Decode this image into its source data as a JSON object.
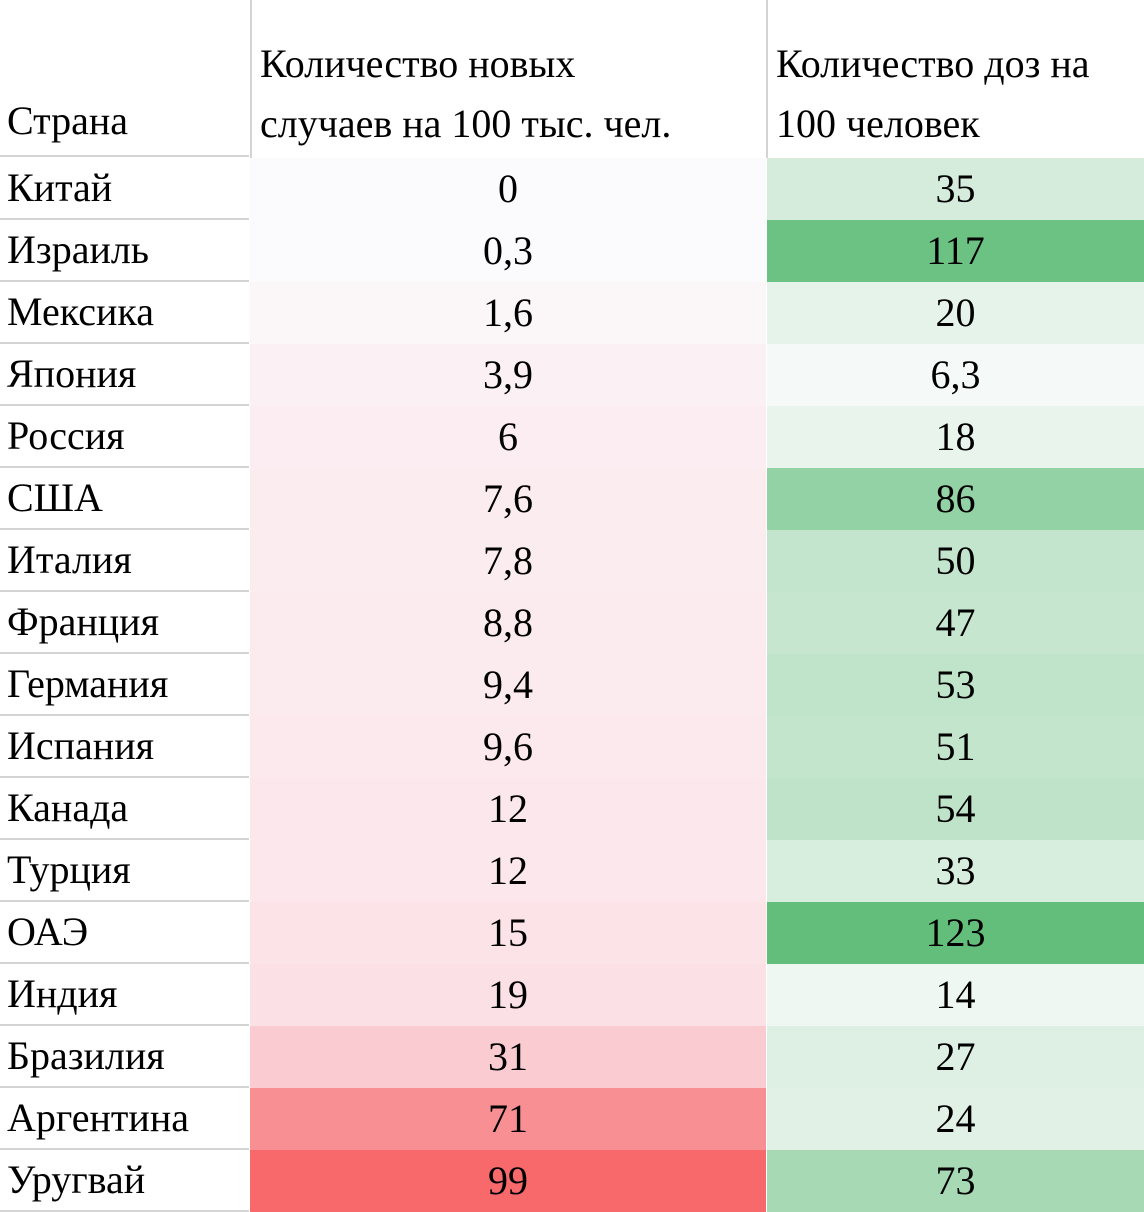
{
  "table": {
    "headers": {
      "country": "Страна",
      "cases": "Количество новых\nслучаев на 100 тыс. чел.",
      "doses": "Количество доз на\n100 человек"
    },
    "rows": [
      {
        "country": "Китай",
        "cases": "0",
        "doses": "35",
        "cases_color": "#fbfafd",
        "doses_color": "#d5ecdd"
      },
      {
        "country": "Израиль",
        "cases": "0,3",
        "doses": "117",
        "cases_color": "#fbfafd",
        "doses_color": "#6bc283"
      },
      {
        "country": "Мексика",
        "cases": "1,6",
        "doses": "20",
        "cases_color": "#fbf7f9",
        "doses_color": "#e6f3ea"
      },
      {
        "country": "Япония",
        "cases": "3,9",
        "doses": "6,3",
        "cases_color": "#fbf1f4",
        "doses_color": "#f5f9f7"
      },
      {
        "country": "Россия",
        "cases": "6",
        "doses": "18",
        "cases_color": "#fbedf1",
        "doses_color": "#e8f4ec"
      },
      {
        "country": "США",
        "cases": "7,6",
        "doses": "86",
        "cases_color": "#fbecf0",
        "doses_color": "#93d2a5"
      },
      {
        "country": "Италия",
        "cases": "7,8",
        "doses": "50",
        "cases_color": "#fbecf0",
        "doses_color": "#c3e5cd"
      },
      {
        "country": "Франция",
        "cases": "8,8",
        "doses": "47",
        "cases_color": "#fbebef",
        "doses_color": "#c6e6cf"
      },
      {
        "country": "Германия",
        "cases": "9,4",
        "doses": "53",
        "cases_color": "#fbeaee",
        "doses_color": "#c0e4ca"
      },
      {
        "country": "Испания",
        "cases": "9,6",
        "doses": "51",
        "cases_color": "#fbe9ee",
        "doses_color": "#c2e5cc"
      },
      {
        "country": "Канада",
        "cases": "12",
        "doses": "54",
        "cases_color": "#fbe7ec",
        "doses_color": "#bfe3c9"
      },
      {
        "country": "Турция",
        "cases": "12",
        "doses": "33",
        "cases_color": "#fbe7ec",
        "doses_color": "#d7edde"
      },
      {
        "country": "ОАЭ",
        "cases": "15",
        "doses": "123",
        "cases_color": "#fbe3e8",
        "doses_color": "#63be7b"
      },
      {
        "country": "Индия",
        "cases": "19",
        "doses": "14",
        "cases_color": "#fbe0e5",
        "doses_color": "#eef7f1"
      },
      {
        "country": "Бразилия",
        "cases": "31",
        "doses": "27",
        "cases_color": "#facbd0",
        "doses_color": "#ddf0e3"
      },
      {
        "country": "Аргентина",
        "cases": "71",
        "doses": "24",
        "cases_color": "#f89093",
        "doses_color": "#e1f1e6"
      },
      {
        "country": "Уругвай",
        "cases": "99",
        "doses": "73",
        "cases_color": "#f8696b",
        "doses_color": "#a6d9b4"
      }
    ]
  }
}
